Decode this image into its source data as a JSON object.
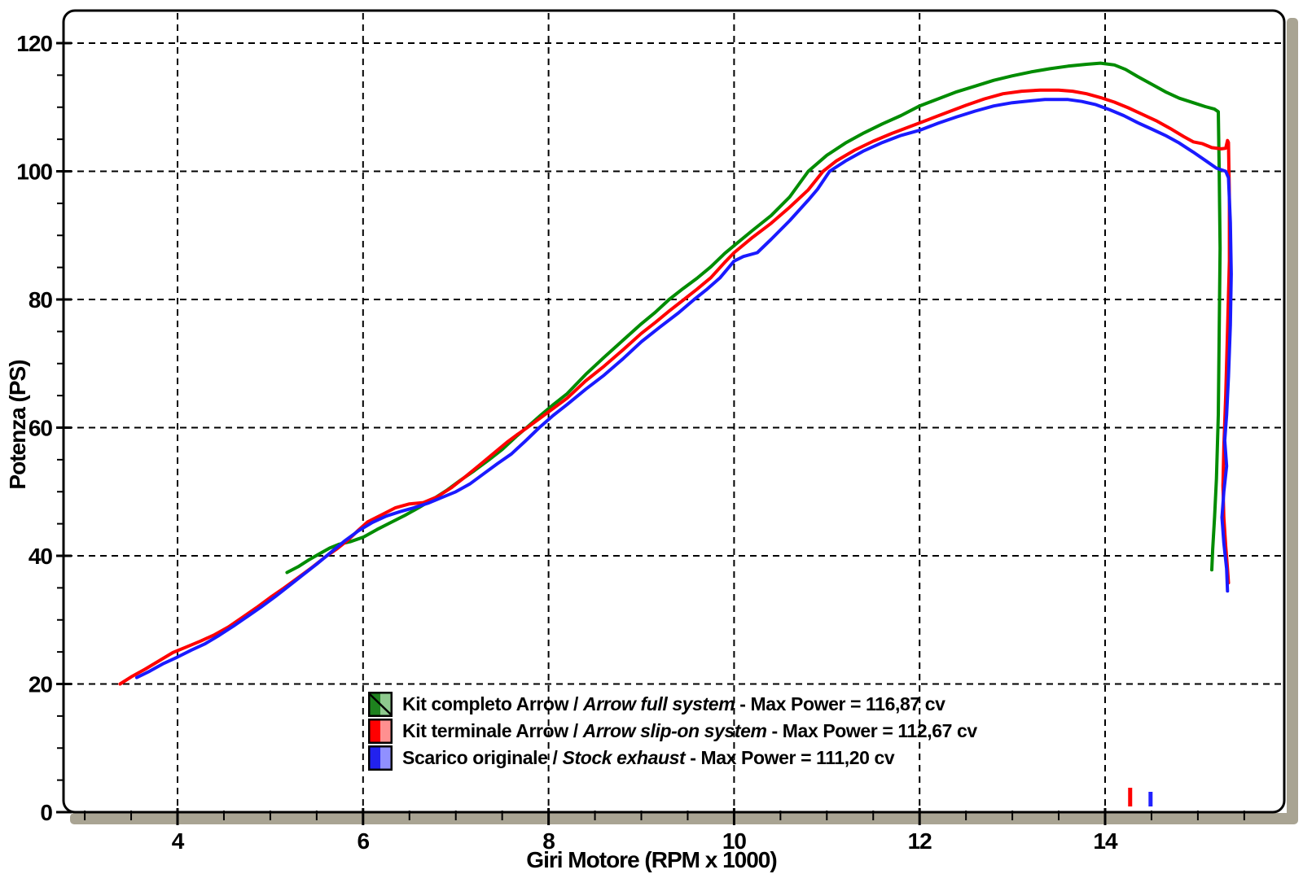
{
  "figure": {
    "background": "#ffffff"
  },
  "chart_data": {
    "type": "line",
    "title": "",
    "xlabel": "Giri Motore (RPM x 1000)",
    "ylabel": "Potenza (PS)",
    "x_axis_range": [
      2.77,
      15.93
    ],
    "ylim": [
      0,
      125
    ],
    "x_major_ticks": [
      4,
      6,
      8,
      10,
      12,
      14
    ],
    "x_minor_tick_step": 0.5,
    "x_minor_tick_range": [
      3.0,
      15.5
    ],
    "y_major_ticks": [
      0,
      20,
      40,
      60,
      80,
      100,
      120
    ],
    "y_minor_tick_step": 5,
    "grid": "dashed black lines at major ticks, both axes",
    "legend_position": "inside-bottom-center",
    "frame_colors": {
      "border": "#000000",
      "side_bar": "#a9a493",
      "plot_bg": "#ffffff"
    },
    "series": [
      {
        "name_roman": "Kit completo Arrow / ",
        "name_italic": "Arrow full system",
        "name_suffix": " - Max Power = 116,87 cv",
        "max_power_cv": "116,87",
        "color": "#008c00",
        "swatch": {
          "dark": "#1e821e",
          "light": "#8ec98e",
          "diagonal": true
        },
        "points": [
          [
            5.18,
            37.4
          ],
          [
            5.3,
            38.3
          ],
          [
            5.42,
            39.4
          ],
          [
            5.54,
            40.4
          ],
          [
            5.64,
            41.2
          ],
          [
            5.74,
            41.8
          ],
          [
            5.86,
            42.2
          ],
          [
            6.0,
            42.9
          ],
          [
            6.15,
            44.1
          ],
          [
            6.3,
            45.2
          ],
          [
            6.45,
            46.3
          ],
          [
            6.6,
            47.5
          ],
          [
            6.75,
            48.8
          ],
          [
            6.9,
            50.2
          ],
          [
            7.05,
            51.8
          ],
          [
            7.2,
            53.3
          ],
          [
            7.35,
            54.9
          ],
          [
            7.5,
            56.6
          ],
          [
            7.65,
            58.6
          ],
          [
            7.78,
            60.2
          ],
          [
            7.92,
            62.0
          ],
          [
            8.06,
            63.7
          ],
          [
            8.2,
            65.3
          ],
          [
            8.4,
            68.3
          ],
          [
            8.6,
            71.0
          ],
          [
            8.8,
            73.6
          ],
          [
            9.0,
            76.2
          ],
          [
            9.15,
            78.0
          ],
          [
            9.3,
            80.0
          ],
          [
            9.45,
            81.7
          ],
          [
            9.6,
            83.3
          ],
          [
            9.75,
            85.1
          ],
          [
            9.9,
            87.2
          ],
          [
            10.0,
            88.4
          ],
          [
            10.2,
            90.8
          ],
          [
            10.4,
            93.1
          ],
          [
            10.6,
            96.0
          ],
          [
            10.8,
            100.0
          ],
          [
            11.0,
            102.5
          ],
          [
            11.2,
            104.4
          ],
          [
            11.4,
            106.0
          ],
          [
            11.6,
            107.4
          ],
          [
            11.8,
            108.7
          ],
          [
            12.0,
            110.2
          ],
          [
            12.2,
            111.3
          ],
          [
            12.4,
            112.4
          ],
          [
            12.6,
            113.3
          ],
          [
            12.8,
            114.2
          ],
          [
            13.0,
            114.9
          ],
          [
            13.2,
            115.5
          ],
          [
            13.4,
            116.0
          ],
          [
            13.6,
            116.4
          ],
          [
            13.8,
            116.7
          ],
          [
            13.95,
            116.87
          ],
          [
            14.1,
            116.6
          ],
          [
            14.22,
            115.9
          ],
          [
            14.35,
            114.8
          ],
          [
            14.5,
            113.6
          ],
          [
            14.65,
            112.4
          ],
          [
            14.8,
            111.4
          ],
          [
            14.95,
            110.7
          ],
          [
            15.08,
            110.1
          ],
          [
            15.18,
            109.7
          ],
          [
            15.22,
            109.3
          ],
          [
            15.23,
            100.0
          ],
          [
            15.24,
            88.0
          ],
          [
            15.23,
            75.0
          ],
          [
            15.22,
            62.0
          ],
          [
            15.2,
            52.0
          ],
          [
            15.18,
            46.0
          ],
          [
            15.16,
            41.0
          ],
          [
            15.15,
            37.8
          ]
        ]
      },
      {
        "name_roman": "Kit terminale Arrow / ",
        "name_italic": "Arrow slip-on system",
        "name_suffix": " - Max Power = 112,67 cv",
        "max_power_cv": "112,67",
        "color": "#ff0000",
        "swatch": {
          "dark": "#ff0000",
          "light": "#ff9090",
          "diagonal": false
        },
        "points": [
          [
            3.38,
            20.0
          ],
          [
            3.5,
            21.1
          ],
          [
            3.65,
            22.3
          ],
          [
            3.8,
            23.6
          ],
          [
            3.95,
            24.9
          ],
          [
            4.1,
            25.8
          ],
          [
            4.25,
            26.7
          ],
          [
            4.4,
            27.7
          ],
          [
            4.55,
            28.9
          ],
          [
            4.7,
            30.4
          ],
          [
            4.85,
            31.9
          ],
          [
            5.0,
            33.5
          ],
          [
            5.15,
            35.0
          ],
          [
            5.3,
            36.6
          ],
          [
            5.45,
            38.2
          ],
          [
            5.6,
            39.9
          ],
          [
            5.72,
            41.1
          ],
          [
            5.84,
            42.5
          ],
          [
            5.95,
            44.0
          ],
          [
            6.05,
            45.3
          ],
          [
            6.2,
            46.4
          ],
          [
            6.35,
            47.5
          ],
          [
            6.5,
            48.1
          ],
          [
            6.65,
            48.3
          ],
          [
            6.8,
            49.2
          ],
          [
            6.95,
            50.6
          ],
          [
            7.1,
            52.3
          ],
          [
            7.25,
            54.1
          ],
          [
            7.4,
            55.9
          ],
          [
            7.55,
            57.7
          ],
          [
            7.66,
            58.9
          ],
          [
            7.78,
            60.1
          ],
          [
            7.92,
            61.6
          ],
          [
            8.06,
            63.1
          ],
          [
            8.2,
            64.6
          ],
          [
            8.4,
            67.3
          ],
          [
            8.6,
            69.6
          ],
          [
            8.8,
            72.1
          ],
          [
            9.0,
            74.7
          ],
          [
            9.15,
            76.4
          ],
          [
            9.3,
            78.2
          ],
          [
            9.46,
            80.0
          ],
          [
            9.6,
            81.6
          ],
          [
            9.75,
            83.4
          ],
          [
            9.9,
            85.8
          ],
          [
            10.0,
            87.3
          ],
          [
            10.2,
            89.7
          ],
          [
            10.4,
            91.9
          ],
          [
            10.6,
            94.4
          ],
          [
            10.8,
            97.1
          ],
          [
            10.96,
            100.0
          ],
          [
            11.1,
            101.6
          ],
          [
            11.3,
            103.3
          ],
          [
            11.5,
            104.7
          ],
          [
            11.7,
            105.9
          ],
          [
            11.9,
            107.0
          ],
          [
            12.1,
            108.1
          ],
          [
            12.3,
            109.2
          ],
          [
            12.5,
            110.3
          ],
          [
            12.7,
            111.3
          ],
          [
            12.9,
            112.1
          ],
          [
            13.1,
            112.5
          ],
          [
            13.3,
            112.67
          ],
          [
            13.5,
            112.67
          ],
          [
            13.65,
            112.5
          ],
          [
            13.8,
            112.1
          ],
          [
            13.95,
            111.5
          ],
          [
            14.1,
            110.8
          ],
          [
            14.25,
            109.9
          ],
          [
            14.4,
            108.9
          ],
          [
            14.55,
            107.9
          ],
          [
            14.7,
            106.7
          ],
          [
            14.85,
            105.4
          ],
          [
            14.95,
            104.6
          ],
          [
            15.05,
            104.3
          ],
          [
            15.15,
            103.7
          ],
          [
            15.25,
            103.5
          ],
          [
            15.3,
            103.6
          ],
          [
            15.32,
            104.8
          ],
          [
            15.33,
            104.5
          ],
          [
            15.34,
            96.0
          ],
          [
            15.34,
            86.0
          ],
          [
            15.32,
            75.0
          ],
          [
            15.3,
            65.0
          ],
          [
            15.28,
            57.0
          ],
          [
            15.27,
            51.0
          ],
          [
            15.28,
            46.0
          ],
          [
            15.3,
            41.5
          ],
          [
            15.32,
            38.0
          ],
          [
            15.33,
            35.8
          ]
        ]
      },
      {
        "name_roman": "Scarico originale / ",
        "name_italic": "Stock exhaust",
        "name_suffix": " - Max Power = 111,20 cv",
        "max_power_cv": "111,20",
        "color": "#1a1aff",
        "swatch": {
          "dark": "#2222ee",
          "light": "#9090ff",
          "diagonal": false
        },
        "points": [
          [
            3.56,
            21.0
          ],
          [
            3.7,
            22.0
          ],
          [
            3.85,
            23.2
          ],
          [
            4.0,
            24.2
          ],
          [
            4.15,
            25.3
          ],
          [
            4.3,
            26.3
          ],
          [
            4.45,
            27.6
          ],
          [
            4.6,
            29.0
          ],
          [
            4.75,
            30.5
          ],
          [
            4.9,
            32.0
          ],
          [
            5.05,
            33.6
          ],
          [
            5.2,
            35.3
          ],
          [
            5.35,
            37.0
          ],
          [
            5.5,
            38.7
          ],
          [
            5.65,
            40.5
          ],
          [
            5.8,
            42.3
          ],
          [
            5.95,
            43.9
          ],
          [
            6.1,
            45.2
          ],
          [
            6.25,
            46.2
          ],
          [
            6.4,
            46.9
          ],
          [
            6.55,
            47.5
          ],
          [
            6.7,
            48.2
          ],
          [
            6.85,
            49.1
          ],
          [
            7.0,
            50.0
          ],
          [
            7.15,
            51.2
          ],
          [
            7.3,
            52.8
          ],
          [
            7.45,
            54.4
          ],
          [
            7.6,
            55.9
          ],
          [
            7.75,
            57.9
          ],
          [
            7.9,
            60.0
          ],
          [
            8.05,
            61.9
          ],
          [
            8.2,
            63.6
          ],
          [
            8.4,
            66.0
          ],
          [
            8.6,
            68.2
          ],
          [
            8.8,
            70.7
          ],
          [
            9.0,
            73.4
          ],
          [
            9.2,
            75.7
          ],
          [
            9.4,
            77.9
          ],
          [
            9.57,
            80.0
          ],
          [
            9.7,
            81.5
          ],
          [
            9.85,
            83.4
          ],
          [
            10.0,
            86.0
          ],
          [
            10.1,
            86.7
          ],
          [
            10.25,
            87.3
          ],
          [
            10.4,
            89.4
          ],
          [
            10.6,
            92.3
          ],
          [
            10.8,
            95.5
          ],
          [
            10.9,
            97.2
          ],
          [
            11.03,
            100.0
          ],
          [
            11.2,
            101.6
          ],
          [
            11.4,
            103.2
          ],
          [
            11.6,
            104.5
          ],
          [
            11.8,
            105.6
          ],
          [
            12.0,
            106.4
          ],
          [
            12.2,
            107.5
          ],
          [
            12.4,
            108.5
          ],
          [
            12.6,
            109.4
          ],
          [
            12.8,
            110.2
          ],
          [
            13.0,
            110.7
          ],
          [
            13.2,
            111.0
          ],
          [
            13.35,
            111.2
          ],
          [
            13.6,
            111.2
          ],
          [
            13.75,
            110.9
          ],
          [
            13.9,
            110.4
          ],
          [
            14.05,
            109.6
          ],
          [
            14.2,
            108.7
          ],
          [
            14.35,
            107.6
          ],
          [
            14.5,
            106.6
          ],
          [
            14.65,
            105.6
          ],
          [
            14.8,
            104.4
          ],
          [
            14.95,
            103.0
          ],
          [
            15.1,
            101.5
          ],
          [
            15.2,
            100.5
          ],
          [
            15.3,
            100.0
          ],
          [
            15.33,
            99.0
          ],
          [
            15.35,
            92.0
          ],
          [
            15.36,
            84.0
          ],
          [
            15.35,
            76.0
          ],
          [
            15.33,
            68.0
          ],
          [
            15.31,
            62.0
          ],
          [
            15.29,
            58.0
          ],
          [
            15.31,
            54.0
          ],
          [
            15.28,
            50.0
          ],
          [
            15.26,
            46.0
          ],
          [
            15.28,
            42.0
          ],
          [
            15.31,
            38.0
          ],
          [
            15.32,
            34.5
          ]
        ]
      }
    ],
    "limiter_marks": [
      {
        "rpm": 14.27,
        "color": "#ff0000"
      },
      {
        "rpm": 14.49,
        "color": "#2222ff"
      }
    ]
  }
}
